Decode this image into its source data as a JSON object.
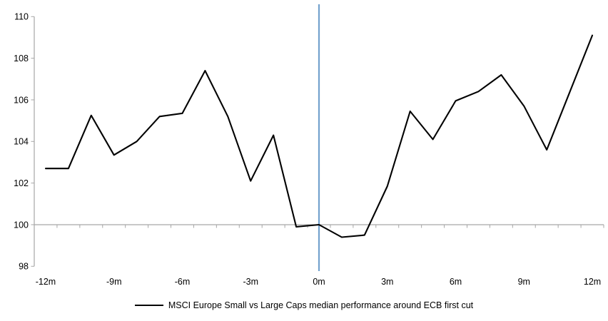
{
  "chart_data": {
    "type": "line",
    "title": "",
    "legend_label": "MSCI Europe Small vs Large Caps median performance around ECB first cut",
    "x_unit": "months relative to ECB first cut",
    "x": [
      -12,
      -11,
      -10,
      -9,
      -8,
      -7,
      -6,
      -5,
      -4,
      -3,
      -2,
      -1,
      0,
      1,
      2,
      3,
      4,
      5,
      6,
      7,
      8,
      9,
      10,
      11,
      12
    ],
    "series": [
      {
        "name": "MSCI Europe Small vs Large Caps median performance around ECB first cut",
        "values": [
          102.7,
          102.7,
          105.25,
          103.35,
          104.0,
          105.2,
          105.35,
          107.4,
          105.2,
          102.1,
          104.3,
          99.9,
          100.0,
          99.4,
          99.5,
          101.85,
          105.45,
          104.1,
          105.95,
          106.4,
          107.2,
          105.7,
          103.6,
          106.35,
          109.1
        ]
      }
    ],
    "x_tick_months": [
      -12,
      -9,
      -6,
      -3,
      0,
      3,
      6,
      9,
      12
    ],
    "x_tick_labels": [
      "-12m",
      "-9m",
      "-6m",
      "-3m",
      "0m",
      "3m",
      "6m",
      "9m",
      "12m"
    ],
    "y_ticks": [
      110,
      108,
      106,
      104,
      102,
      100,
      98
    ],
    "ylim": [
      98,
      110
    ],
    "baseline_value": 100,
    "event_line_month": 0,
    "grid": "off",
    "legend_position": "bottom-center",
    "colors": {
      "series_line": "#000000",
      "axis_gray": "#A6A6A6",
      "event_line_blue": "#74A2CE",
      "text": "#000000",
      "background": "#FFFFFF"
    }
  }
}
